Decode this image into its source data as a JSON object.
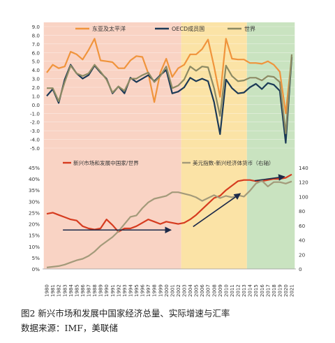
{
  "caption": {
    "title": "图2   新兴市场和发展中国家经济总量、实际增速与汇率",
    "source": "数据来源：IMF，美联储"
  },
  "colors": {
    "band1": "#f9d3c4",
    "band2": "#fbe3a6",
    "band3": "#c9e3c0",
    "east_asia": "#f0943c",
    "oecd": "#1c3a57",
    "world": "#8c8a63",
    "em_share": "#d63b1f",
    "usd_index": "#a39a7a",
    "arrow": "#1c2a4a"
  },
  "chart_data": [
    {
      "type": "line",
      "name": "growth",
      "x": [
        1980,
        1981,
        1982,
        1983,
        1984,
        1985,
        1986,
        1987,
        1988,
        1989,
        1990,
        1991,
        1992,
        1993,
        1994,
        1995,
        1996,
        1997,
        1998,
        1999,
        2000,
        2001,
        2002,
        2003,
        2004,
        2005,
        2006,
        2007,
        2008,
        2009,
        2010,
        2011,
        2012,
        2013,
        2014,
        2015,
        2016,
        2017,
        2018,
        2019,
        2020,
        2021
      ],
      "ylim": [
        -5.0,
        9.0
      ],
      "yticks": [
        "9.0",
        "8.0",
        "7.0",
        "6.0",
        "5.0",
        "4.0",
        "3.0",
        "2.0",
        "1.0",
        "0.0",
        "-1.0",
        "-2.0",
        "-3.0",
        "-4.0",
        "-5.0"
      ],
      "legend_position": "top",
      "series": [
        {
          "name": "东亚及太平洋",
          "color": "#f0943c",
          "values": [
            3.7,
            4.6,
            4.2,
            4.4,
            6.1,
            5.8,
            5.2,
            6.3,
            7.6,
            5.1,
            5.0,
            4.9,
            4.2,
            4.2,
            5.1,
            5.6,
            5.5,
            3.6,
            0.3,
            3.7,
            5.3,
            3.2,
            4.2,
            4.6,
            5.8,
            5.8,
            6.4,
            7.5,
            4.4,
            0.9,
            7.6,
            5.3,
            5.2,
            5.2,
            4.8,
            4.8,
            4.7,
            5.0,
            4.6,
            3.8,
            -1.0,
            5.5
          ]
        },
        {
          "name": "OECD成员国",
          "color": "#1c3a57",
          "values": [
            1.0,
            1.8,
            0.2,
            2.9,
            4.6,
            3.6,
            3.0,
            3.4,
            4.5,
            3.7,
            3.0,
            1.3,
            2.1,
            1.3,
            3.1,
            2.6,
            3.0,
            3.4,
            2.7,
            3.4,
            4.0,
            1.3,
            1.5,
            2.0,
            3.1,
            2.7,
            3.0,
            2.7,
            0.3,
            -3.4,
            2.9,
            1.9,
            1.3,
            1.4,
            2.0,
            2.4,
            1.8,
            2.5,
            2.3,
            1.6,
            -4.4,
            5.5
          ]
        },
        {
          "name": "世界",
          "color": "#8c8a63",
          "values": [
            1.9,
            1.9,
            0.4,
            2.6,
            4.5,
            3.6,
            3.3,
            3.6,
            4.6,
            3.8,
            2.9,
            1.4,
            2.1,
            1.6,
            3.0,
            3.0,
            3.4,
            3.7,
            2.6,
            3.3,
            4.4,
            1.9,
            2.2,
            2.9,
            4.4,
            3.9,
            4.4,
            4.3,
            1.9,
            -1.3,
            4.5,
            3.3,
            2.7,
            2.8,
            3.1,
            3.1,
            2.8,
            3.3,
            3.2,
            2.6,
            -3.3,
            5.8
          ]
        }
      ]
    },
    {
      "type": "line",
      "name": "share-and-dollar",
      "x": [
        1980,
        1981,
        1982,
        1983,
        1984,
        1985,
        1986,
        1987,
        1988,
        1989,
        1990,
        1991,
        1992,
        1993,
        1994,
        1995,
        1996,
        1997,
        1998,
        1999,
        2000,
        2001,
        2002,
        2003,
        2004,
        2005,
        2006,
        2007,
        2008,
        2009,
        2010,
        2011,
        2012,
        2013,
        2014,
        2015,
        2016,
        2017,
        2018,
        2019,
        2020,
        2021
      ],
      "ylim": [
        0,
        45
      ],
      "y2lim": [
        0,
        140
      ],
      "yticks": [
        "45%",
        "40%",
        "35%",
        "30%",
        "25%",
        "20%",
        "15%",
        "10%",
        "5%",
        "0%"
      ],
      "y2ticks": [
        "140",
        "120",
        "100",
        "80",
        "60",
        "40",
        "20",
        "0"
      ],
      "legend_position": "top",
      "series": [
        {
          "name": "新兴市场和发展中国家/世界",
          "axis": "left",
          "color": "#d63b1f",
          "values": [
            24.5,
            25.0,
            24.0,
            23.0,
            22.0,
            21.5,
            19.0,
            18.0,
            17.5,
            18.0,
            22.0,
            19.5,
            16.5,
            18.0,
            18.0,
            19.0,
            20.5,
            22.0,
            21.0,
            20.0,
            21.0,
            20.5,
            20.0,
            20.5,
            22.0,
            24.0,
            26.5,
            29.0,
            31.5,
            32.5,
            35.0,
            37.0,
            39.0,
            39.5,
            39.5,
            39.0,
            39.0,
            39.5,
            40.0,
            40.0,
            40.5,
            42.0
          ]
        },
        {
          "name": "美元指数-新兴经济体货币（右轴）",
          "axis": "right",
          "color": "#a39a7a",
          "values": [
            2,
            3,
            4,
            6,
            9,
            12,
            14,
            18,
            24,
            32,
            38,
            44,
            52,
            62,
            72,
            74,
            84,
            92,
            97,
            99,
            101,
            106,
            106,
            104,
            102,
            99,
            94,
            98,
            102,
            98,
            101,
            99,
            102,
            100,
            108,
            118,
            122,
            114,
            120,
            120,
            118,
            121
          ]
        }
      ]
    }
  ]
}
